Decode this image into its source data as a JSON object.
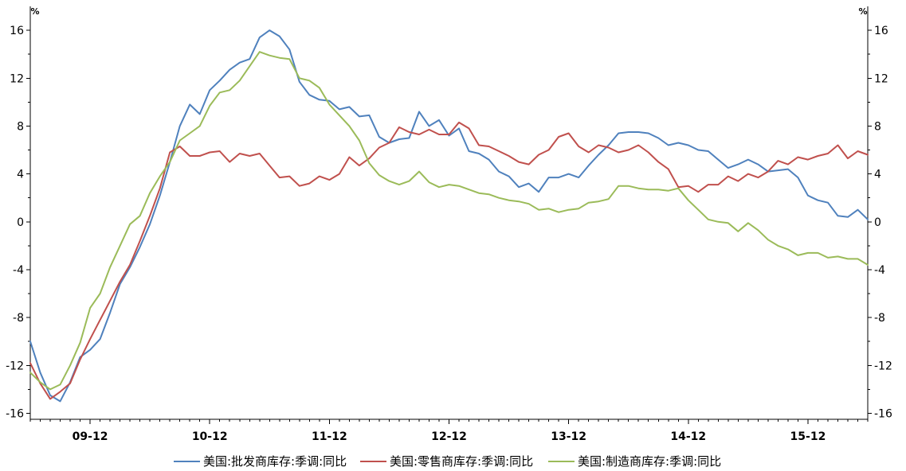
{
  "chart_data": {
    "type": "line",
    "grid": false,
    "legend": "bottom",
    "ylabel": "%",
    "y2label": "%",
    "xlim": [
      "2009-06",
      "2016-06"
    ],
    "ylim": [
      -16.5,
      18
    ],
    "y2lim": [
      -16.5,
      18
    ],
    "yticks": [
      -16,
      -12,
      -8,
      -4,
      0,
      4,
      8,
      12,
      16
    ],
    "y2ticks": [
      -16,
      -12,
      -8,
      -4,
      0,
      4,
      8,
      12,
      16
    ],
    "xticks": [
      "09-12",
      "10-12",
      "11-12",
      "12-12",
      "13-12",
      "14-12",
      "15-12"
    ],
    "x": [
      "2009-06",
      "2009-07",
      "2009-08",
      "2009-09",
      "2009-10",
      "2009-11",
      "2009-12",
      "2010-01",
      "2010-02",
      "2010-03",
      "2010-04",
      "2010-05",
      "2010-06",
      "2010-07",
      "2010-08",
      "2010-09",
      "2010-10",
      "2010-11",
      "2010-12",
      "2011-01",
      "2011-02",
      "2011-03",
      "2011-04",
      "2011-05",
      "2011-06",
      "2011-07",
      "2011-08",
      "2011-09",
      "2011-10",
      "2011-11",
      "2011-12",
      "2012-01",
      "2012-02",
      "2012-03",
      "2012-04",
      "2012-05",
      "2012-06",
      "2012-07",
      "2012-08",
      "2012-09",
      "2012-10",
      "2012-11",
      "2012-12",
      "2013-01",
      "2013-02",
      "2013-03",
      "2013-04",
      "2013-05",
      "2013-06",
      "2013-07",
      "2013-08",
      "2013-09",
      "2013-10",
      "2013-11",
      "2013-12",
      "2014-01",
      "2014-02",
      "2014-03",
      "2014-04",
      "2014-05",
      "2014-06",
      "2014-07",
      "2014-08",
      "2014-09",
      "2014-10",
      "2014-11",
      "2014-12",
      "2015-01",
      "2015-02",
      "2015-03",
      "2015-04",
      "2015-05",
      "2015-06",
      "2015-07",
      "2015-08",
      "2015-09",
      "2015-10",
      "2015-11",
      "2015-12",
      "2016-01",
      "2016-02",
      "2016-03",
      "2016-04",
      "2016-05",
      "2016-06"
    ],
    "series": [
      {
        "name": "美国:批发商库存:季调:同比",
        "color": "#4F81BD",
        "values": [
          -10.0,
          -12.6,
          -14.5,
          -15.0,
          -13.4,
          -11.3,
          -10.7,
          -9.8,
          -7.6,
          -5.2,
          -3.8,
          -2.1,
          -0.2,
          2.2,
          5.0,
          8.0,
          9.8,
          9.0,
          11.0,
          11.8,
          12.7,
          13.3,
          13.6,
          15.4,
          16.0,
          15.5,
          14.4,
          11.7,
          10.6,
          10.2,
          10.1,
          9.4,
          9.6,
          8.8,
          8.9,
          7.1,
          6.6,
          6.9,
          7.0,
          9.2,
          8.0,
          8.5,
          7.2,
          7.8,
          5.9,
          5.7,
          5.2,
          4.2,
          3.8,
          2.9,
          3.2,
          2.5,
          3.7,
          3.7,
          4.0,
          3.7,
          4.7,
          5.6,
          6.4,
          7.4,
          7.5,
          7.5,
          7.4,
          7.0,
          6.4,
          6.6,
          6.4,
          6.0,
          5.9,
          5.2,
          4.5,
          4.8,
          5.2,
          4.8,
          4.2,
          4.3,
          4.4,
          3.7,
          2.2,
          1.8,
          1.6,
          0.5,
          0.4,
          1.0,
          0.2
        ]
      },
      {
        "name": "美国:零售商库存:季调:同比",
        "color": "#C0504D",
        "values": [
          -11.8,
          -13.5,
          -14.8,
          -14.2,
          -13.5,
          -11.5,
          -9.8,
          -8.2,
          -6.6,
          -5.0,
          -3.6,
          -1.6,
          0.5,
          2.8,
          5.8,
          6.3,
          5.5,
          5.5,
          5.8,
          5.9,
          5.0,
          5.7,
          5.5,
          5.7,
          4.7,
          3.7,
          3.8,
          3.0,
          3.2,
          3.8,
          3.5,
          4.0,
          5.4,
          4.7,
          5.3,
          6.2,
          6.6,
          7.9,
          7.5,
          7.3,
          7.7,
          7.3,
          7.3,
          8.3,
          7.8,
          6.4,
          6.3,
          5.9,
          5.5,
          5.0,
          4.8,
          5.6,
          6.0,
          7.1,
          7.4,
          6.3,
          5.8,
          6.4,
          6.2,
          5.8,
          6.0,
          6.4,
          5.8,
          5.0,
          4.4,
          2.9,
          3.0,
          2.5,
          3.1,
          3.1,
          3.8,
          3.4,
          4.0,
          3.7,
          4.2,
          5.1,
          4.8,
          5.4,
          5.2,
          5.5,
          5.7,
          6.4,
          5.3,
          5.9,
          5.6
        ]
      },
      {
        "name": "美国:制造商库存:季调:同比",
        "color": "#9BBB59",
        "values": [
          -12.6,
          -13.4,
          -14.0,
          -13.6,
          -12.0,
          -10.1,
          -7.2,
          -6.0,
          -3.8,
          -2.0,
          -0.2,
          0.5,
          2.4,
          3.8,
          5.0,
          6.8,
          7.4,
          8.0,
          9.7,
          10.8,
          11.0,
          11.8,
          13.0,
          14.2,
          13.9,
          13.7,
          13.6,
          12.0,
          11.8,
          11.2,
          9.8,
          8.9,
          8.0,
          6.8,
          4.9,
          3.9,
          3.4,
          3.1,
          3.4,
          4.2,
          3.3,
          2.9,
          3.1,
          3.0,
          2.7,
          2.4,
          2.3,
          2.0,
          1.8,
          1.7,
          1.5,
          1.0,
          1.1,
          0.8,
          1.0,
          1.1,
          1.6,
          1.7,
          1.9,
          3.0,
          3.0,
          2.8,
          2.7,
          2.7,
          2.6,
          2.8,
          1.8,
          1.0,
          0.2,
          0.0,
          -0.1,
          -0.8,
          -0.1,
          -0.7,
          -1.5,
          -2.0,
          -2.3,
          -2.8,
          -2.6,
          -2.6,
          -3.0,
          -2.9,
          -3.1,
          -3.1,
          -3.6
        ]
      }
    ]
  }
}
